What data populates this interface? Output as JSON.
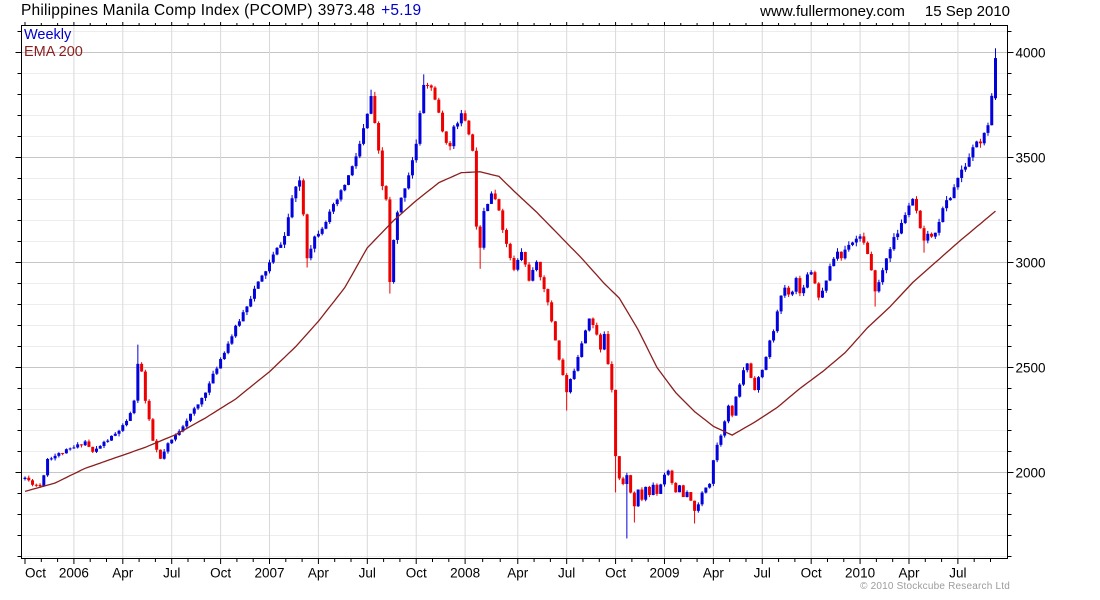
{
  "header": {
    "title": "Philippines Manila Comp Index (PCOMP)",
    "last": "3973.48",
    "change": "+5.19",
    "website": "www.fullermoney.com",
    "date": "15 Sep 2010"
  },
  "legend": {
    "frequency": "Weekly",
    "overlay": "EMA 200"
  },
  "footer": {
    "copyright": "© 2010 Stockcube Research Ltd"
  },
  "chart_data": {
    "type": "candlestick",
    "title": "Philippines Manila Comp Index (PCOMP) 3973.48 +5.19",
    "frequency": "weekly",
    "period_shown": "Oct 2005 - 15 Sep 2010",
    "weeks": 259,
    "last_close": 3973.48,
    "change_on_day": 5.19,
    "overlay": "EMA 200",
    "y_axis_side": "right",
    "ylim": [
      1590,
      4128
    ],
    "y_ticks": [
      2000,
      2500,
      3000,
      3500,
      4000
    ],
    "y_minor_step": 100,
    "x_tick_labels": [
      "Oct",
      "2006",
      "Apr",
      "Jul",
      "Oct",
      "2007",
      "Apr",
      "Jul",
      "Oct",
      "2008",
      "Apr",
      "Jul",
      "Oct",
      "2009",
      "Apr",
      "Jul",
      "Oct",
      "2010",
      "Apr",
      "Jul"
    ],
    "x_tick_week_index": [
      0,
      13,
      26,
      39,
      52,
      65,
      78,
      91,
      104,
      117,
      131,
      144,
      157,
      170,
      183,
      196,
      209,
      222,
      235,
      248
    ],
    "grid": {
      "horizontal_major": true,
      "horizontal_minor": true,
      "vertical_at_ticks": true
    },
    "colors": {
      "up": "#0202dd",
      "down": "#ee0000",
      "ema": "#8b1e1e",
      "grid_major": "#c6c6c6",
      "grid_minor": "#ededed",
      "grid_vertical": "#d9d9d9",
      "frame": "#000000",
      "legend_weekly": "#0000cc",
      "change_text": "#0000cc"
    },
    "close_anchors": [
      [
        0,
        1975
      ],
      [
        2,
        1948
      ],
      [
        4,
        1936
      ],
      [
        5,
        1992
      ],
      [
        6,
        2066
      ],
      [
        9,
        2088
      ],
      [
        13,
        2118
      ],
      [
        16,
        2148
      ],
      [
        18,
        2096
      ],
      [
        21,
        2142
      ],
      [
        24,
        2182
      ],
      [
        27,
        2238
      ],
      [
        29,
        2335
      ],
      [
        30,
        2525
      ],
      [
        31,
        2480
      ],
      [
        32,
        2340
      ],
      [
        34,
        2150
      ],
      [
        36,
        2062
      ],
      [
        38,
        2132
      ],
      [
        40,
        2176
      ],
      [
        43,
        2252
      ],
      [
        46,
        2322
      ],
      [
        49,
        2422
      ],
      [
        52,
        2542
      ],
      [
        55,
        2652
      ],
      [
        58,
        2762
      ],
      [
        61,
        2872
      ],
      [
        64,
        2962
      ],
      [
        66,
        3032
      ],
      [
        69,
        3125
      ],
      [
        71,
        3305
      ],
      [
        73,
        3392
      ],
      [
        74,
        3232
      ],
      [
        75,
        3030
      ],
      [
        77,
        3122
      ],
      [
        79,
        3172
      ],
      [
        81,
        3232
      ],
      [
        84,
        3332
      ],
      [
        87,
        3452
      ],
      [
        89,
        3562
      ],
      [
        91,
        3702
      ],
      [
        92,
        3792
      ],
      [
        93,
        3652
      ],
      [
        94,
        3522
      ],
      [
        95,
        3362
      ],
      [
        96,
        3302
      ],
      [
        97,
        2902
      ],
      [
        98,
        3102
      ],
      [
        99,
        3232
      ],
      [
        100,
        3302
      ],
      [
        102,
        3422
      ],
      [
        104,
        3562
      ],
      [
        105,
        3702
      ],
      [
        106,
        3852
      ],
      [
        108,
        3832
      ],
      [
        109,
        3782
      ],
      [
        110,
        3702
      ],
      [
        111,
        3622
      ],
      [
        113,
        3542
      ],
      [
        114,
        3652
      ],
      [
        116,
        3702
      ],
      [
        117,
        3662
      ],
      [
        118,
        3622
      ],
      [
        119,
        3522
      ],
      [
        120,
        3182
      ],
      [
        121,
        3082
      ],
      [
        122,
        3252
      ],
      [
        124,
        3332
      ],
      [
        126,
        3252
      ],
      [
        128,
        3082
      ],
      [
        130,
        2962
      ],
      [
        132,
        3052
      ],
      [
        134,
        2922
      ],
      [
        136,
        2992
      ],
      [
        138,
        2882
      ],
      [
        140,
        2722
      ],
      [
        142,
        2542
      ],
      [
        144,
        2382
      ],
      [
        146,
        2492
      ],
      [
        148,
        2622
      ],
      [
        150,
        2742
      ],
      [
        151,
        2702
      ],
      [
        152,
        2652
      ],
      [
        153,
        2582
      ],
      [
        154,
        2662
      ],
      [
        155,
        2522
      ],
      [
        156,
        2402
      ],
      [
        157,
        2082
      ],
      [
        158,
        1972
      ],
      [
        159,
        1942
      ],
      [
        160,
        1992
      ],
      [
        161,
        1902
      ],
      [
        162,
        1842
      ],
      [
        163,
        1912
      ],
      [
        164,
        1872
      ],
      [
        165,
        1932
      ],
      [
        166,
        1892
      ],
      [
        167,
        1942
      ],
      [
        168,
        1902
      ],
      [
        169,
        1946
      ],
      [
        170,
        1992
      ],
      [
        171,
        2012
      ],
      [
        172,
        1952
      ],
      [
        173,
        1912
      ],
      [
        174,
        1932
      ],
      [
        175,
        1882
      ],
      [
        176,
        1902
      ],
      [
        177,
        1862
      ],
      [
        178,
        1822
      ],
      [
        179,
        1842
      ],
      [
        180,
        1902
      ],
      [
        181,
        1932
      ],
      [
        182,
        1952
      ],
      [
        183,
        2062
      ],
      [
        184,
        2132
      ],
      [
        185,
        2182
      ],
      [
        186,
        2252
      ],
      [
        187,
        2312
      ],
      [
        188,
        2272
      ],
      [
        189,
        2352
      ],
      [
        190,
        2422
      ],
      [
        191,
        2482
      ],
      [
        192,
        2522
      ],
      [
        193,
        2452
      ],
      [
        194,
        2402
      ],
      [
        195,
        2452
      ],
      [
        196,
        2482
      ],
      [
        197,
        2552
      ],
      [
        198,
        2622
      ],
      [
        199,
        2682
      ],
      [
        200,
        2762
      ],
      [
        201,
        2832
      ],
      [
        202,
        2882
      ],
      [
        203,
        2842
      ],
      [
        204,
        2872
      ],
      [
        205,
        2922
      ],
      [
        206,
        2852
      ],
      [
        207,
        2892
      ],
      [
        208,
        2942
      ],
      [
        209,
        2962
      ],
      [
        210,
        2902
      ],
      [
        211,
        2842
      ],
      [
        212,
        2862
      ],
      [
        213,
        2922
      ],
      [
        214,
        2972
      ],
      [
        215,
        3022
      ],
      [
        216,
        3052
      ],
      [
        217,
        3022
      ],
      [
        218,
        3062
      ],
      [
        219,
        3092
      ],
      [
        220,
        3102
      ],
      [
        221,
        3112
      ],
      [
        222,
        3132
      ],
      [
        223,
        3092
      ],
      [
        224,
        3032
      ],
      [
        225,
        2952
      ],
      [
        226,
        2872
      ],
      [
        227,
        2902
      ],
      [
        228,
        2962
      ],
      [
        229,
        3022
      ],
      [
        230,
        3072
      ],
      [
        231,
        3112
      ],
      [
        232,
        3142
      ],
      [
        233,
        3182
      ],
      [
        234,
        3232
      ],
      [
        235,
        3272
      ],
      [
        236,
        3292
      ],
      [
        237,
        3242
      ],
      [
        238,
        3152
      ],
      [
        239,
        3092
      ],
      [
        240,
        3142
      ],
      [
        241,
        3112
      ],
      [
        242,
        3152
      ],
      [
        243,
        3202
      ],
      [
        244,
        3252
      ],
      [
        245,
        3292
      ],
      [
        246,
        3312
      ],
      [
        247,
        3362
      ],
      [
        248,
        3402
      ],
      [
        249,
        3432
      ],
      [
        250,
        3462
      ],
      [
        251,
        3502
      ],
      [
        252,
        3542
      ],
      [
        253,
        3582
      ],
      [
        254,
        3562
      ],
      [
        255,
        3622
      ],
      [
        256,
        3642
      ],
      [
        257,
        3782
      ],
      [
        258,
        3973.48
      ]
    ],
    "ema200_anchors": [
      [
        0,
        1910
      ],
      [
        8,
        1950
      ],
      [
        16,
        2020
      ],
      [
        24,
        2070
      ],
      [
        32,
        2120
      ],
      [
        40,
        2180
      ],
      [
        48,
        2260
      ],
      [
        56,
        2350
      ],
      [
        65,
        2480
      ],
      [
        72,
        2600
      ],
      [
        78,
        2720
      ],
      [
        85,
        2880
      ],
      [
        91,
        3070
      ],
      [
        98,
        3200
      ],
      [
        104,
        3295
      ],
      [
        110,
        3380
      ],
      [
        116,
        3428
      ],
      [
        121,
        3432
      ],
      [
        126,
        3410
      ],
      [
        130,
        3340
      ],
      [
        136,
        3240
      ],
      [
        142,
        3130
      ],
      [
        148,
        3020
      ],
      [
        154,
        2900
      ],
      [
        158,
        2830
      ],
      [
        163,
        2680
      ],
      [
        168,
        2500
      ],
      [
        173,
        2380
      ],
      [
        178,
        2290
      ],
      [
        183,
        2220
      ],
      [
        188,
        2178
      ],
      [
        194,
        2240
      ],
      [
        200,
        2310
      ],
      [
        206,
        2400
      ],
      [
        212,
        2480
      ],
      [
        218,
        2570
      ],
      [
        224,
        2690
      ],
      [
        230,
        2790
      ],
      [
        236,
        2905
      ],
      [
        242,
        3000
      ],
      [
        248,
        3095
      ],
      [
        254,
        3185
      ],
      [
        258,
        3245
      ]
    ],
    "key_extremes": [
      [
        30,
        "high",
        2609
      ],
      [
        75,
        "low",
        2976
      ],
      [
        92,
        "high",
        3823
      ],
      [
        97,
        "low",
        2852
      ],
      [
        106,
        "high",
        3896
      ],
      [
        121,
        "low",
        2970
      ],
      [
        144,
        "low",
        2295
      ],
      [
        157,
        "low",
        1905
      ],
      [
        160,
        "low",
        1686
      ],
      [
        162,
        "low",
        1762
      ],
      [
        178,
        "low",
        1757
      ],
      [
        226,
        "low",
        2790
      ],
      [
        239,
        "low",
        3047
      ],
      [
        258,
        "high",
        4020
      ]
    ],
    "noise_seed": 11,
    "noise_amp": 0.004,
    "wick_amp": 0.006
  }
}
